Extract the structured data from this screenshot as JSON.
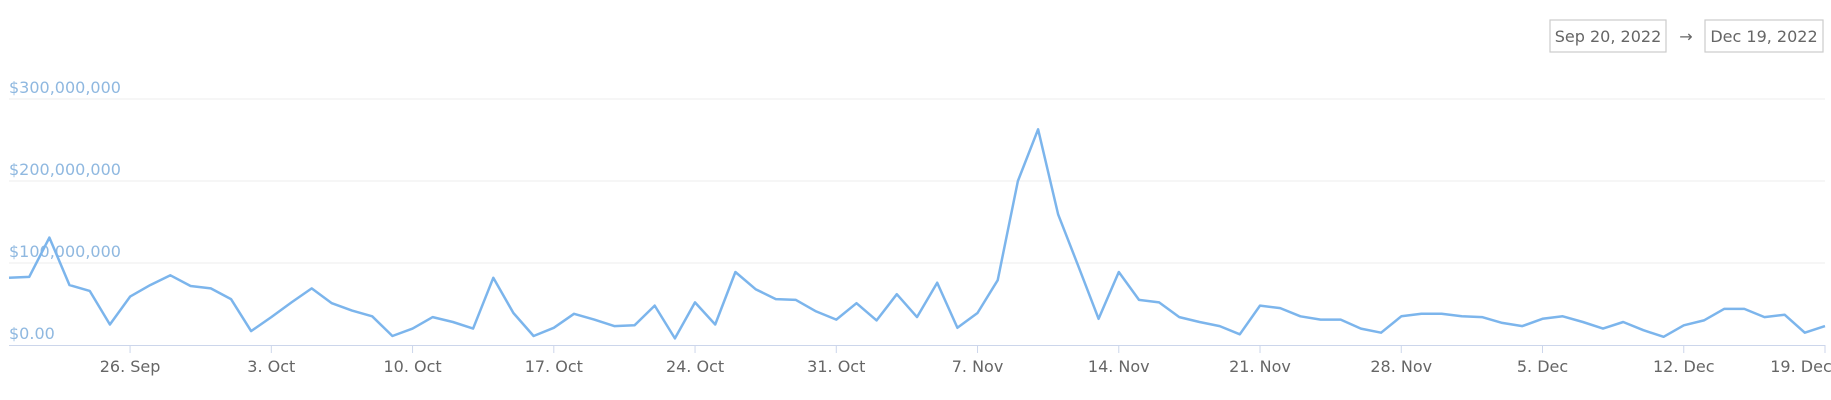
{
  "range_start": "Sep 20, 2022",
  "range_separator": "→",
  "range_end": "Dec 19, 2022",
  "chart_data": {
    "type": "line",
    "x": [
      "2022-09-20",
      "2022-09-21",
      "2022-09-22",
      "2022-09-23",
      "2022-09-24",
      "2022-09-25",
      "2022-09-26",
      "2022-09-27",
      "2022-09-28",
      "2022-09-29",
      "2022-09-30",
      "2022-10-01",
      "2022-10-02",
      "2022-10-03",
      "2022-10-04",
      "2022-10-05",
      "2022-10-06",
      "2022-10-07",
      "2022-10-08",
      "2022-10-09",
      "2022-10-10",
      "2022-10-11",
      "2022-10-12",
      "2022-10-13",
      "2022-10-14",
      "2022-10-15",
      "2022-10-16",
      "2022-10-17",
      "2022-10-18",
      "2022-10-19",
      "2022-10-20",
      "2022-10-21",
      "2022-10-22",
      "2022-10-23",
      "2022-10-24",
      "2022-10-25",
      "2022-10-26",
      "2022-10-27",
      "2022-10-28",
      "2022-10-29",
      "2022-10-30",
      "2022-10-31",
      "2022-11-01",
      "2022-11-02",
      "2022-11-03",
      "2022-11-04",
      "2022-11-05",
      "2022-11-06",
      "2022-11-07",
      "2022-11-08",
      "2022-11-09",
      "2022-11-10",
      "2022-11-11",
      "2022-11-12",
      "2022-11-13",
      "2022-11-14",
      "2022-11-15",
      "2022-11-16",
      "2022-11-17",
      "2022-11-18",
      "2022-11-19",
      "2022-11-20",
      "2022-11-21",
      "2022-11-22",
      "2022-11-23",
      "2022-11-24",
      "2022-11-25",
      "2022-11-26",
      "2022-11-27",
      "2022-11-28",
      "2022-11-29",
      "2022-11-30",
      "2022-12-01",
      "2022-12-02",
      "2022-12-03",
      "2022-12-04",
      "2022-12-05",
      "2022-12-06",
      "2022-12-07",
      "2022-12-08",
      "2022-12-09",
      "2022-12-10",
      "2022-12-11",
      "2022-12-12",
      "2022-12-13",
      "2022-12-14",
      "2022-12-15",
      "2022-12-16",
      "2022-12-17",
      "2022-12-18",
      "2022-12-19"
    ],
    "values": [
      82000000,
      83000000,
      131000000,
      73000000,
      66000000,
      25000000,
      59000000,
      73000000,
      85000000,
      72000000,
      69000000,
      56000000,
      17000000,
      34000000,
      52000000,
      69000000,
      51000000,
      42000000,
      35000000,
      11000000,
      20000000,
      34000000,
      28000000,
      20000000,
      82000000,
      39000000,
      11000000,
      21000000,
      38000000,
      31000000,
      23000000,
      24000000,
      48000000,
      8000000,
      52000000,
      25000000,
      89000000,
      68000000,
      56000000,
      55000000,
      41000000,
      31000000,
      51000000,
      30000000,
      62000000,
      34000000,
      76000000,
      21000000,
      39000000,
      79000000,
      200000000,
      263000000,
      159000000,
      96000000,
      32000000,
      89000000,
      55000000,
      52000000,
      34000000,
      28000000,
      23000000,
      13000000,
      48000000,
      45000000,
      35000000,
      31000000,
      31000000,
      20000000,
      15000000,
      35000000,
      38000000,
      38000000,
      35000000,
      34000000,
      27000000,
      23000000,
      32000000,
      35000000,
      28000000,
      20000000,
      28000000,
      18000000,
      10000000,
      24000000,
      30000000,
      44000000,
      44000000,
      34000000,
      37000000,
      15000000,
      23000000
    ],
    "color": "#7cb5ec",
    "xlim": [
      "2022-09-20",
      "2022-12-19"
    ],
    "xticks": [
      {
        "value": "2022-09-26",
        "label": "26. Sep"
      },
      {
        "value": "2022-10-03",
        "label": "3. Oct"
      },
      {
        "value": "2022-10-10",
        "label": "10. Oct"
      },
      {
        "value": "2022-10-17",
        "label": "17. Oct"
      },
      {
        "value": "2022-10-24",
        "label": "24. Oct"
      },
      {
        "value": "2022-10-31",
        "label": "31. Oct"
      },
      {
        "value": "2022-11-07",
        "label": "7. Nov"
      },
      {
        "value": "2022-11-14",
        "label": "14. Nov"
      },
      {
        "value": "2022-11-21",
        "label": "21. Nov"
      },
      {
        "value": "2022-11-28",
        "label": "28. Nov"
      },
      {
        "value": "2022-12-05",
        "label": "5. Dec"
      },
      {
        "value": "2022-12-12",
        "label": "12. Dec"
      },
      {
        "value": "2022-12-19",
        "label": "19. Dec"
      }
    ],
    "ylim": [
      0,
      300000000
    ],
    "yticks": [
      {
        "value": 0,
        "label": "$0.00"
      },
      {
        "value": 100000000,
        "label": "$100,000,000"
      },
      {
        "value": 200000000,
        "label": "$200,000,000"
      },
      {
        "value": 300000000,
        "label": "$300,000,000"
      }
    ],
    "grid": true
  }
}
